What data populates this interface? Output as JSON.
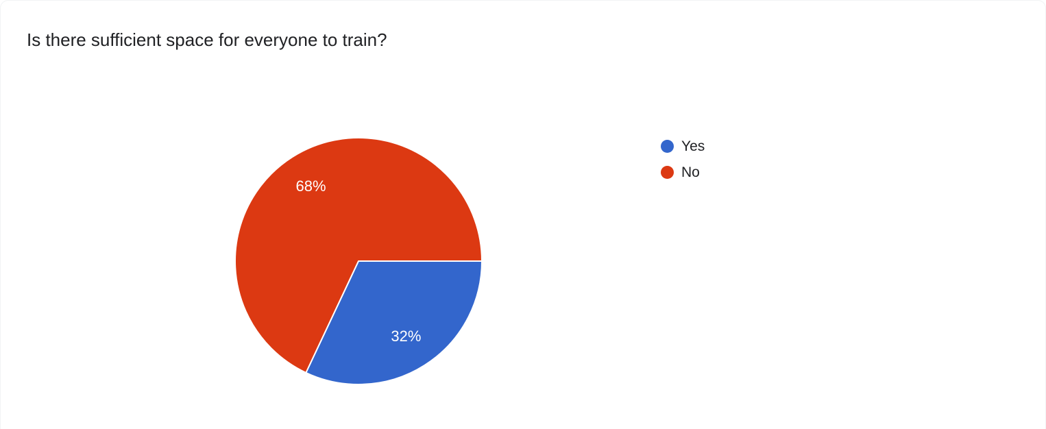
{
  "chart_data": {
    "type": "pie",
    "title": "Is there sufficient space for everyone to train?",
    "categories": [
      "Yes",
      "No"
    ],
    "values": [
      32,
      68
    ],
    "slice_labels": [
      "32%",
      "68%"
    ],
    "colors": [
      "#3366CC",
      "#DC3912"
    ],
    "label_color": "#FFFFFF",
    "legend_position": "right",
    "start_angle_deg": 0,
    "direction": "clockwise",
    "legend": {
      "items": [
        {
          "label": "Yes"
        },
        {
          "label": "No"
        }
      ]
    }
  }
}
